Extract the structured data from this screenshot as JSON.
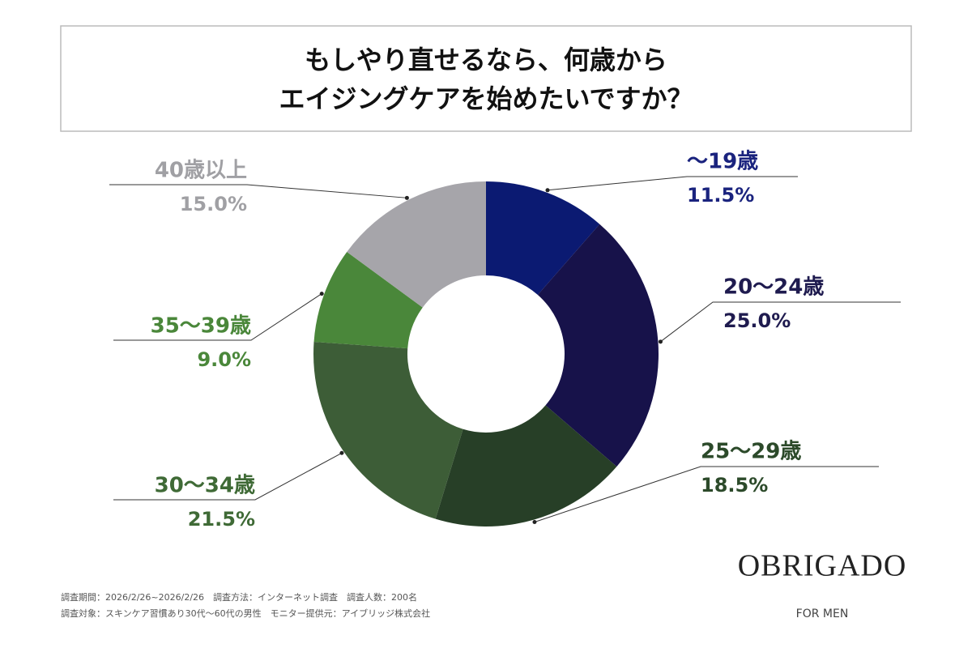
{
  "chart_data": {
    "type": "donut",
    "title": [
      "もしやり直せるなら、何歳から",
      "エイジングケアを始めたいですか？"
    ],
    "categories": [
      "～19歳",
      "20～24歳",
      "25～29歳",
      "30～34歳",
      "35～39歳",
      "40歳以上"
    ],
    "values": [
      11.5,
      25.0,
      18.5,
      21.5,
      9.0,
      15.0
    ],
    "value_labels": [
      "11.5%",
      "25.0%",
      "18.5%",
      "21.5%",
      "9.0%",
      "15.0%"
    ],
    "colors": [
      "#0b1a72",
      "#17124a",
      "#273f27",
      "#3d5d37",
      "#4a873a",
      "#a6a5aa"
    ],
    "label_colors": [
      "#1a237e",
      "#1f1b4f",
      "#2c4a2a",
      "#3f6a36",
      "#4a873a",
      "#a0a0a4"
    ]
  },
  "notes": [
    "調査期間：2026/2/26~2026/2/26　調査方法：インターネット調査　調査人数：200名",
    "調査対象：スキンケア習慣あり30代～60代の男性　モニター提供元：アイブリッジ株式会社"
  ],
  "brand": {
    "name": "OBRIGADO",
    "tagline": "FOR MEN"
  }
}
